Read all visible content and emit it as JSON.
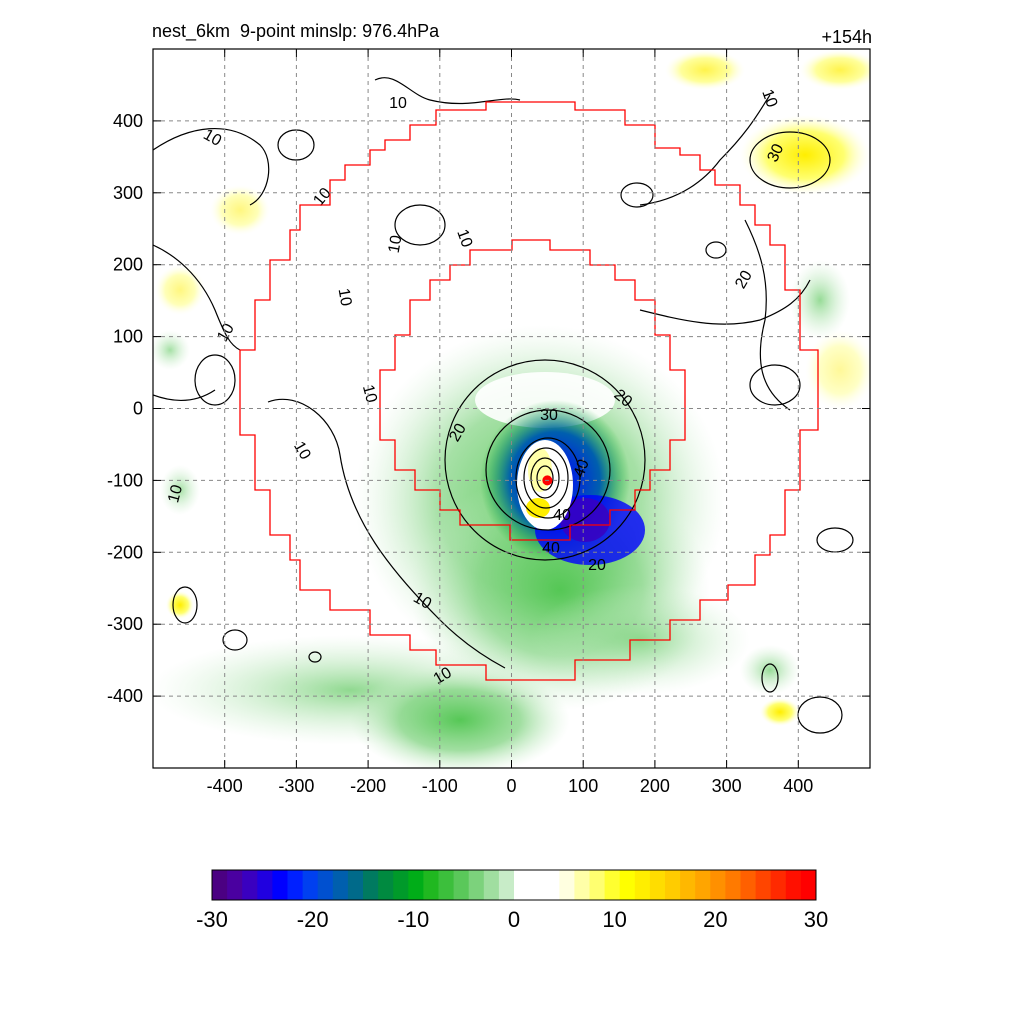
{
  "header": {
    "title_left": "nest_6km  9-point minslp: 976.4hPa",
    "title_right": "+154h"
  },
  "chart_data": {
    "type": "heatmap",
    "title": "nest_6km  9-point minslp: 976.4hPa",
    "forecast_time": "+154h",
    "x_ticks": [
      -400,
      -300,
      -200,
      -100,
      0,
      100,
      200,
      300,
      400
    ],
    "y_ticks": [
      400,
      300,
      200,
      100,
      0,
      -100,
      -200,
      -300,
      -400
    ],
    "xlim": [
      -500,
      500
    ],
    "ylim": [
      -500,
      500
    ],
    "grid": true,
    "center": {
      "x": 50,
      "y": -100,
      "color": "#ff0000"
    },
    "contour_levels": [
      10,
      20,
      30,
      40
    ],
    "contour_labels": [
      "10",
      "10",
      "10",
      "10",
      "10",
      "10",
      "10",
      "10",
      "10",
      "10",
      "10",
      "10",
      "10",
      "20",
      "20",
      "20",
      "20",
      "30",
      "30",
      "40",
      "40"
    ],
    "colorbar": {
      "range": [
        -30,
        30
      ],
      "tick_values": [
        -30,
        -20,
        -10,
        0,
        10,
        20,
        30
      ],
      "tick_labels": [
        "-30",
        "-20",
        "-10",
        "0",
        "10",
        "20",
        "30"
      ],
      "colors": [
        "#4b0082",
        "#4a00a0",
        "#3a00c0",
        "#2000e0",
        "#0000ff",
        "#0020ff",
        "#0040f0",
        "#0050d0",
        "#005fae",
        "#006a8a",
        "#007a60",
        "#008a40",
        "#009a2a",
        "#00ad18",
        "#20b820",
        "#3cbf3c",
        "#5ac85a",
        "#7cd27c",
        "#a0dea0",
        "#c8ecc8",
        "#ffffff",
        "#ffffff",
        "#ffffff",
        "#ffffe0",
        "#ffffa8",
        "#ffff70",
        "#ffff30",
        "#ffff00",
        "#ffee00",
        "#ffdd00",
        "#ffcc00",
        "#ffb800",
        "#ffa500",
        "#ff9000",
        "#ff7a00",
        "#ff6000",
        "#ff4500",
        "#ff2a00",
        "#ff1000",
        "#ff0000"
      ]
    },
    "colors": {
      "ring_boundary": "#ff0000",
      "contour": "#000000",
      "grid": "#888888"
    }
  }
}
